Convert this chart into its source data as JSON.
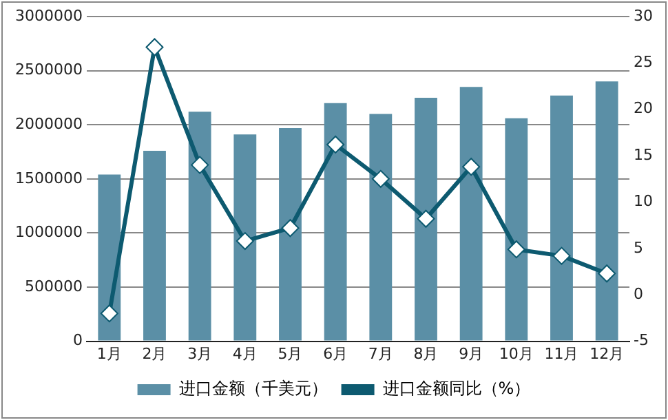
{
  "chart_data": {
    "type": "bar",
    "categories": [
      "1月",
      "2月",
      "3月",
      "4月",
      "5月",
      "6月",
      "7月",
      "8月",
      "9月",
      "10月",
      "11月",
      "12月"
    ],
    "series": [
      {
        "name": "进口金额（千美元）",
        "color": "#5b8fa6",
        "values": [
          1540000,
          1760000,
          2120000,
          1910000,
          1970000,
          2200000,
          2100000,
          2250000,
          2350000,
          2060000,
          2270000,
          2400000
        ]
      },
      {
        "name": "进口金额同比（%）",
        "type": "line",
        "axis": "y2",
        "color": "#0d5a70",
        "marker": "diamond",
        "values": [
          -2,
          26.7,
          14,
          5.8,
          7.2,
          16.2,
          12.5,
          8.2,
          13.8,
          4.9,
          4.2,
          2.3
        ]
      }
    ],
    "ylim": [
      0,
      3000000
    ],
    "yticks": [
      0,
      500000,
      1000000,
      1500000,
      2000000,
      2500000,
      3000000
    ],
    "y2lim": [
      -5,
      30
    ],
    "y2ticks": [
      -5,
      0,
      5,
      10,
      15,
      20,
      25,
      30
    ],
    "grid": "y",
    "legend": "bottom"
  }
}
